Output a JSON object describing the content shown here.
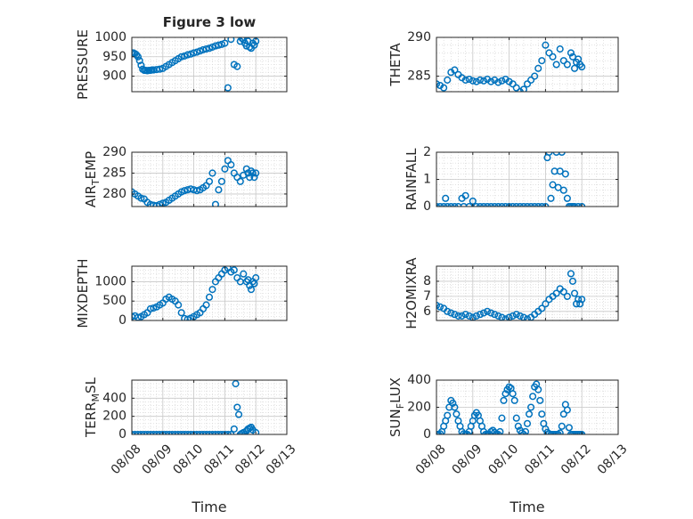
{
  "figure_title": "Figure 3 low",
  "colors": {
    "marker": "#0072BD",
    "axis": "#262626",
    "grid": "#d0d0d0",
    "background": "#ffffff"
  },
  "chart_data": [
    {
      "type": "scatter",
      "title": "Figure 3 low",
      "ylabel": "PRESSURE",
      "xlim": [
        0,
        5
      ],
      "ylim": [
        860,
        1000
      ],
      "yticks": [
        900,
        950,
        1000
      ],
      "xtick_labels": [
        "08/08",
        "08/09",
        "08/10",
        "08/11",
        "08/12",
        "08/13"
      ],
      "show_xtick_labels": false,
      "xlabel": "",
      "grid": true,
      "x": [
        0.0,
        0.05,
        0.1,
        0.15,
        0.2,
        0.25,
        0.3,
        0.35,
        0.4,
        0.45,
        0.5,
        0.55,
        0.6,
        0.65,
        0.7,
        0.8,
        0.9,
        1.0,
        1.1,
        1.2,
        1.3,
        1.4,
        1.5,
        1.6,
        1.7,
        1.8,
        1.9,
        2.0,
        2.1,
        2.2,
        2.3,
        2.4,
        2.5,
        2.6,
        2.7,
        2.8,
        2.9,
        3.0,
        3.1,
        3.2,
        3.3,
        3.4,
        3.5,
        3.55,
        3.6,
        3.65,
        3.7,
        3.75,
        3.8,
        3.85,
        3.9,
        3.95,
        4.0
      ],
      "y": [
        960,
        960,
        958,
        955,
        950,
        940,
        928,
        918,
        915,
        915,
        914,
        915,
        915,
        916,
        916,
        917,
        918,
        920,
        925,
        930,
        935,
        940,
        945,
        950,
        952,
        955,
        957,
        960,
        962,
        965,
        968,
        970,
        972,
        975,
        978,
        980,
        982,
        985,
        870,
        995,
        930,
        925,
        990,
        998,
        994,
        985,
        978,
        990,
        975,
        972,
        985,
        980,
        990
      ]
    },
    {
      "type": "scatter",
      "ylabel": "THETA",
      "xlim": [
        0,
        5
      ],
      "ylim": [
        283,
        290
      ],
      "yticks": [
        285,
        290
      ],
      "xtick_labels": [
        "08/08",
        "08/09",
        "08/10",
        "08/11",
        "08/12",
        "08/13"
      ],
      "show_xtick_labels": false,
      "xlabel": "",
      "grid": true,
      "x": [
        0.0,
        0.1,
        0.2,
        0.3,
        0.4,
        0.5,
        0.6,
        0.7,
        0.8,
        0.9,
        1.0,
        1.1,
        1.2,
        1.3,
        1.4,
        1.5,
        1.6,
        1.7,
        1.8,
        1.9,
        2.0,
        2.1,
        2.2,
        2.3,
        2.4,
        2.5,
        2.6,
        2.7,
        2.8,
        2.9,
        3.0,
        3.1,
        3.2,
        3.3,
        3.4,
        3.5,
        3.6,
        3.7,
        3.75,
        3.8,
        3.85,
        3.9,
        3.95,
        4.0
      ],
      "y": [
        284,
        283.8,
        283.5,
        284.5,
        285.5,
        285.8,
        285.2,
        284.8,
        284.5,
        284.6,
        284.4,
        284.3,
        284.5,
        284.4,
        284.6,
        284.3,
        284.5,
        284.2,
        284.4,
        284.6,
        284.3,
        284,
        283.5,
        283,
        283.3,
        284,
        284.5,
        285,
        286,
        287,
        289,
        288,
        287.5,
        286.5,
        288.5,
        287,
        286.5,
        288,
        287.5,
        286,
        286.8,
        287.2,
        286.5,
        286.2
      ]
    },
    {
      "type": "scatter",
      "ylabel": "AIR_TEMP",
      "ylabel_display": [
        "AIR",
        "T",
        "EMP"
      ],
      "xlim": [
        0,
        5
      ],
      "ylim": [
        277,
        290
      ],
      "yticks": [
        280,
        285,
        290
      ],
      "xtick_labels": [
        "08/08",
        "08/09",
        "08/10",
        "08/11",
        "08/12",
        "08/13"
      ],
      "show_xtick_labels": false,
      "xlabel": "",
      "grid": true,
      "x": [
        0.0,
        0.1,
        0.2,
        0.3,
        0.4,
        0.5,
        0.6,
        0.7,
        0.8,
        0.9,
        1.0,
        1.1,
        1.2,
        1.3,
        1.4,
        1.5,
        1.6,
        1.7,
        1.8,
        1.9,
        2.0,
        2.1,
        2.2,
        2.3,
        2.4,
        2.5,
        2.6,
        2.7,
        2.8,
        2.9,
        3.0,
        3.1,
        3.2,
        3.3,
        3.4,
        3.5,
        3.6,
        3.7,
        3.75,
        3.8,
        3.85,
        3.9,
        3.95,
        4.0
      ],
      "y": [
        280.5,
        280,
        279.5,
        279,
        278.8,
        278,
        277.5,
        277.3,
        277.2,
        277.5,
        277.8,
        278,
        278.5,
        279,
        279.5,
        280,
        280.5,
        280.8,
        281,
        281.2,
        281,
        280.8,
        281,
        281.5,
        282,
        283,
        285,
        277.5,
        281,
        283,
        286,
        288,
        287,
        285,
        284,
        283,
        284.5,
        286,
        285,
        284,
        285.5,
        285,
        284,
        285
      ]
    },
    {
      "type": "scatter",
      "ylabel": "RAINFALL",
      "xlim": [
        0,
        5
      ],
      "ylim": [
        0,
        2
      ],
      "yticks": [
        0,
        1,
        2
      ],
      "xtick_labels": [
        "08/08",
        "08/09",
        "08/10",
        "08/11",
        "08/12",
        "08/13"
      ],
      "show_xtick_labels": false,
      "xlabel": "",
      "grid": true,
      "x": [
        0.0,
        0.1,
        0.2,
        0.25,
        0.3,
        0.4,
        0.5,
        0.6,
        0.7,
        0.75,
        0.8,
        0.9,
        1.0,
        1.1,
        1.2,
        1.3,
        1.4,
        1.5,
        1.6,
        1.7,
        1.8,
        1.9,
        2.0,
        2.1,
        2.2,
        2.3,
        2.4,
        2.5,
        2.6,
        2.7,
        2.8,
        2.9,
        3.0,
        3.05,
        3.1,
        3.15,
        3.2,
        3.25,
        3.3,
        3.35,
        3.4,
        3.45,
        3.5,
        3.55,
        3.6,
        3.65,
        3.7,
        3.75,
        3.8,
        3.9,
        4.0
      ],
      "y": [
        0,
        0,
        0,
        0.3,
        0,
        0,
        0,
        0,
        0.3,
        0,
        0.4,
        0,
        0.2,
        0,
        0,
        0,
        0,
        0,
        0,
        0,
        0,
        0,
        0,
        0,
        0,
        0,
        0,
        0,
        0,
        0,
        0,
        0,
        0,
        1.8,
        2.0,
        0.3,
        0.8,
        1.3,
        2.0,
        0.7,
        1.3,
        2.0,
        0.6,
        1.2,
        0.3,
        0,
        0,
        0,
        0,
        0,
        0
      ]
    },
    {
      "type": "scatter",
      "ylabel": "MIXDEPTH",
      "xlim": [
        0,
        5
      ],
      "ylim": [
        0,
        1400
      ],
      "yticks": [
        0,
        500,
        1000
      ],
      "xtick_labels": [
        "08/08",
        "08/09",
        "08/10",
        "08/11",
        "08/12",
        "08/13"
      ],
      "show_xtick_labels": false,
      "xlabel": "",
      "grid": true,
      "x": [
        0.0,
        0.1,
        0.2,
        0.3,
        0.4,
        0.5,
        0.6,
        0.7,
        0.8,
        0.9,
        1.0,
        1.1,
        1.2,
        1.3,
        1.4,
        1.5,
        1.6,
        1.7,
        1.8,
        1.9,
        2.0,
        2.1,
        2.2,
        2.3,
        2.4,
        2.5,
        2.6,
        2.7,
        2.8,
        2.9,
        3.0,
        3.1,
        3.2,
        3.3,
        3.4,
        3.5,
        3.6,
        3.7,
        3.75,
        3.8,
        3.85,
        3.9,
        3.95,
        4.0
      ],
      "y": [
        100,
        120,
        80,
        100,
        150,
        200,
        300,
        320,
        350,
        400,
        450,
        550,
        600,
        550,
        500,
        400,
        200,
        50,
        30,
        60,
        100,
        150,
        200,
        300,
        400,
        600,
        800,
        1000,
        1100,
        1200,
        1300,
        1350,
        1250,
        1300,
        1100,
        1000,
        1200,
        1000,
        1050,
        900,
        800,
        1000,
        950,
        1100
      ]
    },
    {
      "type": "scatter",
      "ylabel": "H2OMIXRA",
      "xlim": [
        0,
        5
      ],
      "ylim": [
        5.4,
        9
      ],
      "yticks": [
        6,
        7,
        8
      ],
      "xtick_labels": [
        "08/08",
        "08/09",
        "08/10",
        "08/11",
        "08/12",
        "08/13"
      ],
      "show_xtick_labels": false,
      "xlabel": "",
      "grid": true,
      "x": [
        0.0,
        0.1,
        0.2,
        0.3,
        0.4,
        0.5,
        0.6,
        0.7,
        0.8,
        0.9,
        1.0,
        1.1,
        1.2,
        1.3,
        1.4,
        1.5,
        1.6,
        1.7,
        1.8,
        1.9,
        2.0,
        2.1,
        2.2,
        2.3,
        2.4,
        2.5,
        2.6,
        2.7,
        2.8,
        2.9,
        3.0,
        3.1,
        3.2,
        3.3,
        3.4,
        3.5,
        3.6,
        3.7,
        3.75,
        3.8,
        3.85,
        3.9,
        3.95,
        4.0
      ],
      "y": [
        6.4,
        6.3,
        6.2,
        6,
        5.9,
        5.8,
        5.7,
        5.7,
        5.8,
        5.7,
        5.6,
        5.7,
        5.8,
        5.9,
        6,
        5.9,
        5.8,
        5.7,
        5.6,
        5.5,
        5.6,
        5.7,
        5.8,
        5.7,
        5.6,
        5.5,
        5.6,
        5.8,
        6,
        6.2,
        6.5,
        6.8,
        7,
        7.2,
        7.5,
        7.3,
        7,
        8.5,
        8,
        7.2,
        6.5,
        6.8,
        6.5,
        6.8
      ]
    },
    {
      "type": "scatter",
      "ylabel": "TERR_MSL",
      "ylabel_display": [
        "TERR",
        "M",
        "SL"
      ],
      "xlim": [
        0,
        5
      ],
      "ylim": [
        0,
        600
      ],
      "yticks": [
        0,
        200,
        400
      ],
      "xtick_labels": [
        "08/08",
        "08/09",
        "08/10",
        "08/11",
        "08/12",
        "08/13"
      ],
      "show_xtick_labels": true,
      "xlabel": "Time",
      "grid": true,
      "x": [
        0.0,
        0.1,
        0.2,
        0.3,
        0.4,
        0.5,
        0.6,
        0.7,
        0.8,
        0.9,
        1.0,
        1.1,
        1.2,
        1.3,
        1.4,
        1.5,
        1.6,
        1.7,
        1.8,
        1.9,
        2.0,
        2.1,
        2.2,
        2.3,
        2.4,
        2.5,
        2.6,
        2.7,
        2.8,
        2.9,
        3.0,
        3.1,
        3.2,
        3.3,
        3.35,
        3.4,
        3.45,
        3.5,
        3.55,
        3.6,
        3.65,
        3.7,
        3.75,
        3.8,
        3.85,
        3.9,
        4.0
      ],
      "y": [
        0,
        0,
        0,
        0,
        0,
        0,
        0,
        0,
        0,
        0,
        0,
        0,
        0,
        0,
        0,
        0,
        0,
        0,
        0,
        0,
        0,
        0,
        0,
        0,
        0,
        0,
        0,
        0,
        0,
        0,
        0,
        0,
        0,
        60,
        560,
        300,
        220,
        0,
        10,
        20,
        0,
        40,
        60,
        70,
        80,
        50,
        20
      ]
    },
    {
      "type": "scatter",
      "ylabel": "SUN_FLUX",
      "ylabel_display": [
        "SUN",
        "F",
        "LUX"
      ],
      "xlim": [
        0,
        5
      ],
      "ylim": [
        0,
        400
      ],
      "yticks": [
        0,
        200,
        400
      ],
      "xtick_labels": [
        "08/08",
        "08/09",
        "08/10",
        "08/11",
        "08/12",
        "08/13"
      ],
      "show_xtick_labels": true,
      "xlabel": "Time",
      "grid": true,
      "x": [
        0.0,
        0.05,
        0.1,
        0.15,
        0.2,
        0.25,
        0.3,
        0.35,
        0.4,
        0.45,
        0.5,
        0.55,
        0.6,
        0.65,
        0.7,
        0.75,
        0.8,
        0.85,
        0.9,
        0.95,
        1.0,
        1.05,
        1.1,
        1.15,
        1.2,
        1.25,
        1.3,
        1.35,
        1.4,
        1.45,
        1.5,
        1.55,
        1.6,
        1.65,
        1.7,
        1.75,
        1.8,
        1.85,
        1.9,
        1.95,
        2.0,
        2.05,
        2.1,
        2.15,
        2.2,
        2.25,
        2.3,
        2.35,
        2.4,
        2.45,
        2.5,
        2.55,
        2.6,
        2.65,
        2.7,
        2.75,
        2.8,
        2.85,
        2.9,
        2.95,
        3.0,
        3.05,
        3.1,
        3.15,
        3.2,
        3.25,
        3.3,
        3.35,
        3.4,
        3.45,
        3.5,
        3.55,
        3.6,
        3.65,
        3.7,
        3.75,
        3.8,
        3.85,
        3.9,
        3.95,
        4.0
      ],
      "y": [
        0,
        0,
        5,
        20,
        60,
        100,
        140,
        200,
        250,
        230,
        200,
        150,
        100,
        60,
        20,
        5,
        0,
        0,
        20,
        60,
        100,
        140,
        160,
        140,
        100,
        60,
        20,
        0,
        0,
        0,
        20,
        30,
        15,
        0,
        0,
        20,
        120,
        250,
        300,
        330,
        350,
        340,
        300,
        250,
        120,
        60,
        30,
        10,
        0,
        20,
        80,
        150,
        200,
        280,
        350,
        370,
        330,
        250,
        150,
        80,
        40,
        15,
        5,
        0,
        0,
        0,
        0,
        0,
        10,
        60,
        150,
        220,
        180,
        50,
        0,
        0,
        0,
        0,
        0,
        0,
        0
      ]
    }
  ]
}
